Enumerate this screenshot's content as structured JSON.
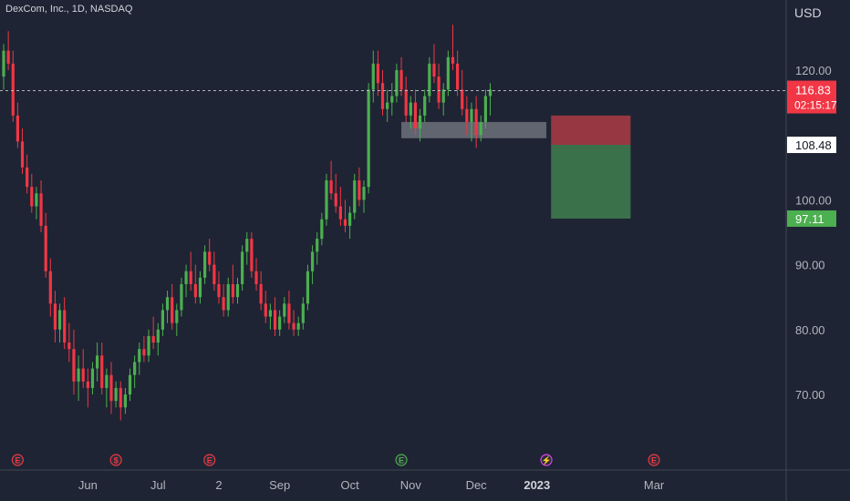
{
  "header": {
    "symbol_line": "DexCom, Inc., 1D, NASDAQ",
    "currency": "USD"
  },
  "chart_data": {
    "type": "candlestick",
    "price_axis": {
      "min": 62,
      "max": 128,
      "ticks": [
        "120.00",
        "100.00",
        "90.00",
        "80.00",
        "70.00"
      ],
      "tick_values": [
        120,
        100,
        90,
        80,
        70
      ]
    },
    "time_axis": [
      {
        "label": "Jun",
        "index": 18
      },
      {
        "label": "Jul",
        "index": 33
      },
      {
        "label": "2",
        "index": 46
      },
      {
        "label": "Sep",
        "index": 59
      },
      {
        "label": "Oct",
        "index": 74
      },
      {
        "label": "Nov",
        "index": 87
      },
      {
        "label": "Dec",
        "index": 101
      },
      {
        "label": "2023",
        "index": 114
      },
      {
        "label": "Mar",
        "index": 139
      }
    ],
    "last_price": {
      "value": 116.83,
      "label": "116.83",
      "countdown": "02:15:17",
      "color": "#f23645"
    },
    "position": {
      "entry": 108.48,
      "entry_label": "108.48",
      "stop": 113.0,
      "target": 97.11,
      "target_label": "97.11",
      "start_index": 117,
      "end_index": 134
    },
    "zone": {
      "top": 112.0,
      "bottom": 109.5,
      "start_index": 85,
      "end_index": 116
    },
    "event_markers": [
      {
        "type": "earnings",
        "glyph": "E",
        "index": 3
      },
      {
        "type": "dividend",
        "glyph": "$",
        "index": 24
      },
      {
        "type": "earnings",
        "glyph": "E",
        "index": 44
      },
      {
        "type": "earnings",
        "glyph": "E",
        "index": 85
      },
      {
        "type": "split",
        "glyph": "⚡",
        "index": 116
      },
      {
        "type": "earnings",
        "glyph": "E",
        "index": 139
      }
    ],
    "colors": {
      "up": "#4caf50",
      "down": "#f23645",
      "background": "#1e2433",
      "zone": "#787b86",
      "stop_zone": "#a33a43",
      "target_zone": "#3e7a4c"
    },
    "candles": [
      [
        119,
        124,
        117,
        123
      ],
      [
        123,
        126,
        120,
        121
      ],
      [
        121,
        123,
        112,
        113
      ],
      [
        113,
        115,
        108,
        109
      ],
      [
        109,
        111,
        104,
        105
      ],
      [
        105,
        107,
        101,
        102
      ],
      [
        102,
        104,
        98,
        99
      ],
      [
        99,
        102,
        97,
        101
      ],
      [
        101,
        103,
        95,
        96
      ],
      [
        96,
        98,
        88,
        89
      ],
      [
        89,
        91,
        82,
        84
      ],
      [
        84,
        86,
        78,
        80
      ],
      [
        80,
        84,
        78,
        83
      ],
      [
        83,
        85,
        77,
        78
      ],
      [
        78,
        81,
        75,
        77
      ],
      [
        77,
        80,
        70,
        72
      ],
      [
        72,
        76,
        69,
        74
      ],
      [
        74,
        77,
        71,
        72
      ],
      [
        72,
        74,
        68,
        71
      ],
      [
        71,
        75,
        70,
        74
      ],
      [
        74,
        78,
        72,
        76
      ],
      [
        76,
        78,
        70,
        71
      ],
      [
        71,
        74,
        68,
        73
      ],
      [
        73,
        75,
        67,
        69
      ],
      [
        69,
        72,
        68,
        71
      ],
      [
        71,
        72,
        66,
        68
      ],
      [
        68,
        71,
        67,
        70
      ],
      [
        70,
        74,
        69,
        73
      ],
      [
        73,
        76,
        71,
        75
      ],
      [
        75,
        78,
        73,
        77
      ],
      [
        77,
        79,
        75,
        76
      ],
      [
        76,
        80,
        75,
        79
      ],
      [
        79,
        82,
        77,
        78
      ],
      [
        78,
        81,
        76,
        80
      ],
      [
        80,
        84,
        79,
        83
      ],
      [
        83,
        86,
        81,
        85
      ],
      [
        85,
        87,
        80,
        81
      ],
      [
        81,
        84,
        79,
        83
      ],
      [
        83,
        88,
        82,
        87
      ],
      [
        87,
        90,
        85,
        89
      ],
      [
        89,
        92,
        86,
        87
      ],
      [
        87,
        90,
        84,
        85
      ],
      [
        85,
        89,
        84,
        88
      ],
      [
        88,
        93,
        87,
        92
      ],
      [
        92,
        94,
        89,
        90
      ],
      [
        90,
        92,
        86,
        87
      ],
      [
        87,
        89,
        84,
        85
      ],
      [
        85,
        87,
        82,
        83
      ],
      [
        83,
        88,
        82,
        87
      ],
      [
        87,
        90,
        84,
        85
      ],
      [
        85,
        88,
        84,
        87
      ],
      [
        87,
        93,
        86,
        92
      ],
      [
        92,
        95,
        90,
        94
      ],
      [
        94,
        95,
        88,
        89
      ],
      [
        89,
        91,
        86,
        87
      ],
      [
        87,
        89,
        83,
        84
      ],
      [
        84,
        86,
        81,
        82
      ],
      [
        82,
        84,
        80,
        83
      ],
      [
        83,
        85,
        79,
        80
      ],
      [
        80,
        83,
        79,
        82
      ],
      [
        82,
        85,
        81,
        84
      ],
      [
        84,
        86,
        80,
        81
      ],
      [
        81,
        83,
        79,
        80
      ],
      [
        80,
        82,
        79,
        81
      ],
      [
        81,
        85,
        80,
        84
      ],
      [
        84,
        90,
        83,
        89
      ],
      [
        89,
        93,
        87,
        92
      ],
      [
        92,
        95,
        90,
        94
      ],
      [
        94,
        98,
        93,
        97
      ],
      [
        97,
        104,
        96,
        103
      ],
      [
        103,
        106,
        100,
        101
      ],
      [
        101,
        104,
        98,
        99
      ],
      [
        99,
        102,
        96,
        97
      ],
      [
        97,
        100,
        95,
        96
      ],
      [
        96,
        99,
        94,
        98
      ],
      [
        98,
        104,
        97,
        103
      ],
      [
        103,
        105,
        99,
        100
      ],
      [
        100,
        103,
        98,
        102
      ],
      [
        102,
        118,
        101,
        117
      ],
      [
        117,
        123,
        115,
        121
      ],
      [
        121,
        123,
        116,
        118
      ],
      [
        118,
        120,
        113,
        114
      ],
      [
        114,
        117,
        112,
        115
      ],
      [
        115,
        118,
        113,
        116
      ],
      [
        116,
        121,
        115,
        120
      ],
      [
        120,
        122,
        116,
        117
      ],
      [
        117,
        119,
        112,
        113
      ],
      [
        113,
        116,
        111,
        115
      ],
      [
        115,
        117,
        110,
        111
      ],
      [
        111,
        114,
        109,
        113
      ],
      [
        113,
        117,
        112,
        116
      ],
      [
        116,
        122,
        115,
        121
      ],
      [
        121,
        124,
        118,
        119
      ],
      [
        119,
        121,
        114,
        115
      ],
      [
        115,
        118,
        113,
        117
      ],
      [
        117,
        123,
        116,
        122
      ],
      [
        122,
        127,
        120,
        121
      ],
      [
        121,
        123,
        116,
        117
      ],
      [
        117,
        120,
        113,
        114
      ],
      [
        114,
        116,
        110,
        112
      ],
      [
        112,
        115,
        109,
        114
      ],
      [
        114,
        116,
        108,
        110
      ],
      [
        110,
        113,
        109,
        112
      ],
      [
        112,
        117,
        111,
        116
      ],
      [
        116,
        118,
        113,
        117
      ]
    ]
  }
}
